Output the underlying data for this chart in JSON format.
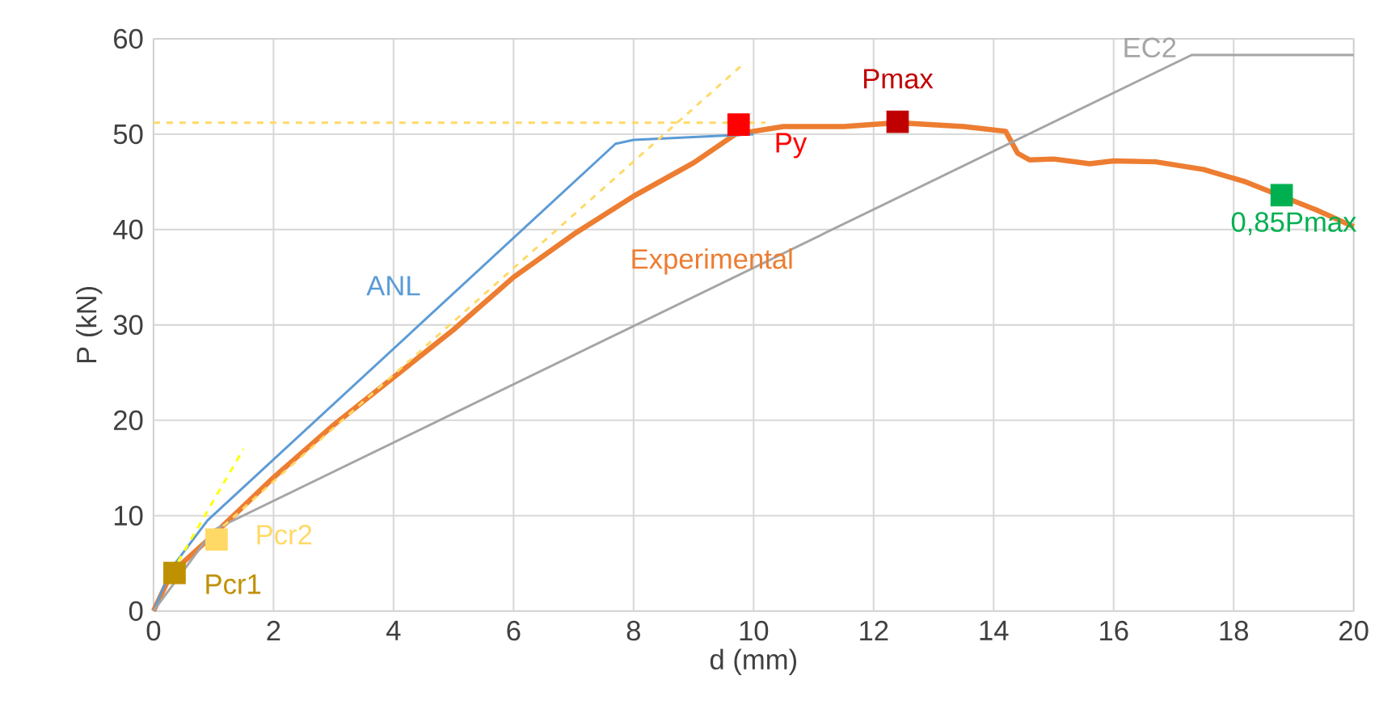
{
  "chart_data": {
    "type": "line",
    "xlabel": "d (mm)",
    "ylabel": "P (kN)",
    "xlim": [
      0,
      20
    ],
    "ylim": [
      0,
      60
    ],
    "xticks": [
      0,
      2,
      4,
      6,
      8,
      10,
      12,
      14,
      16,
      18,
      20
    ],
    "yticks": [
      0,
      10,
      20,
      30,
      40,
      50,
      60
    ],
    "grid": true,
    "series": [
      {
        "name": "Experimental",
        "color": "#ed7d31",
        "x": [
          0,
          0.3,
          1,
          2,
          3,
          4,
          5,
          6,
          7,
          8,
          9,
          9.7,
          10.5,
          11.5,
          12.4,
          13.5,
          14.2,
          14.4,
          14.6,
          15,
          15.6,
          16,
          16.7,
          17.5,
          18.2,
          18.8,
          19.4,
          20
        ],
        "values": [
          0,
          4,
          8,
          14,
          19.5,
          24.5,
          29.5,
          35,
          39.5,
          43.5,
          47,
          50,
          50.8,
          50.8,
          51.2,
          50.8,
          50.3,
          48,
          47.3,
          47.4,
          46.9,
          47.2,
          47.1,
          46.3,
          45,
          43.5,
          42,
          40.3
        ]
      },
      {
        "name": "ANL",
        "color": "#5b9bd5",
        "x": [
          0,
          0.3,
          0.9,
          7.7,
          8,
          10
        ],
        "values": [
          0,
          4.5,
          9.5,
          49,
          49.4,
          50
        ]
      },
      {
        "name": "EC2",
        "color": "#a5a5a5",
        "x": [
          0,
          1,
          17.3,
          20
        ],
        "values": [
          0,
          8.5,
          58.3,
          58.3
        ]
      },
      {
        "color": "#ffd966",
        "line_style": "dashed",
        "x": [
          0,
          10.2
        ],
        "values": [
          51.2,
          51.2
        ]
      },
      {
        "color": "#ffd966",
        "line_style": "dashed",
        "x": [
          1,
          9.8
        ],
        "values": [
          8,
          57.2
        ]
      },
      {
        "color": "#ffff00",
        "line_style": "dashed",
        "x": [
          0.3,
          1.5
        ],
        "values": [
          4,
          17
        ]
      },
      {
        "name": "Pcr1",
        "type": "scatter",
        "marker": "square",
        "color": "#bf9000",
        "x": [
          0.35
        ],
        "values": [
          4
        ]
      },
      {
        "name": "Pcr2",
        "type": "scatter",
        "marker": "square",
        "color": "#ffd966",
        "x": [
          1.05
        ],
        "values": [
          7.5
        ]
      },
      {
        "name": "Py",
        "type": "scatter",
        "marker": "square",
        "color": "#ff0000",
        "x": [
          9.75
        ],
        "values": [
          51
        ]
      },
      {
        "name": "Pmax",
        "type": "scatter",
        "marker": "square",
        "color": "#c00000",
        "x": [
          12.4
        ],
        "values": [
          51.3
        ]
      },
      {
        "name": "0,85Pmax",
        "type": "scatter",
        "marker": "square",
        "color": "#00b050",
        "x": [
          18.8
        ],
        "values": [
          43.6
        ]
      }
    ]
  }
}
